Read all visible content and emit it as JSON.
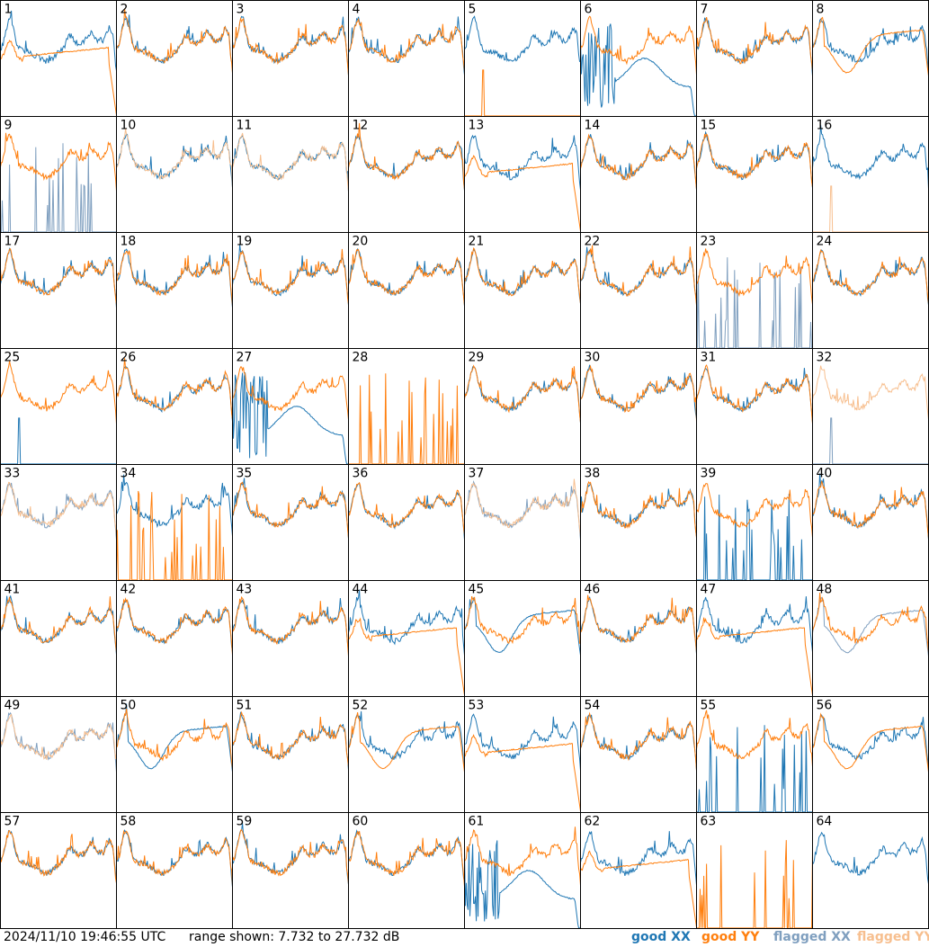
{
  "footer": {
    "timestamp": "2024/11/10 19:46:55 UTC",
    "range_text": "range shown: 7.732 to 27.732 dB"
  },
  "legend": {
    "good_xx": "good XX",
    "good_yy": "good YY",
    "flagged_xx": "flagged XX",
    "flagged_yy": "flagged YY"
  },
  "colors": {
    "good_xx": "#1f77b4",
    "good_yy": "#ff7f0e",
    "flagged_xx": "#7f9fbf",
    "flagged_yy": "#f7bf8f"
  },
  "chart_data": {
    "type": "line",
    "panel_grid": {
      "rows": 8,
      "cols": 8
    },
    "ylim_db": [
      7.732,
      27.732
    ],
    "panels": [
      {
        "label": "1",
        "xx": "good",
        "yy": "good",
        "xx_mode": "normal",
        "yy_mode": "dropoff"
      },
      {
        "label": "2",
        "xx": "good",
        "yy": "good",
        "xx_mode": "normal",
        "yy_mode": "normal"
      },
      {
        "label": "3",
        "xx": "good",
        "yy": "good",
        "xx_mode": "normal",
        "yy_mode": "normal"
      },
      {
        "label": "4",
        "xx": "good",
        "yy": "good",
        "xx_mode": "normal",
        "yy_mode": "normal"
      },
      {
        "label": "5",
        "xx": "good",
        "yy": "good",
        "xx_mode": "normal",
        "yy_mode": "dead"
      },
      {
        "label": "6",
        "xx": "good",
        "yy": "good",
        "xx_mode": "broken",
        "yy_mode": "normal"
      },
      {
        "label": "7",
        "xx": "good",
        "yy": "good",
        "xx_mode": "normal",
        "yy_mode": "normal"
      },
      {
        "label": "8",
        "xx": "good",
        "yy": "good",
        "xx_mode": "normal",
        "yy_mode": "smooth"
      },
      {
        "label": "9",
        "xx": "flagged",
        "yy": "good",
        "xx_mode": "spiky",
        "yy_mode": "normal"
      },
      {
        "label": "10",
        "xx": "good",
        "yy": "flagged",
        "xx_mode": "normal",
        "yy_mode": "normal"
      },
      {
        "label": "11",
        "xx": "good",
        "yy": "flagged",
        "xx_mode": "normal",
        "yy_mode": "normal"
      },
      {
        "label": "12",
        "xx": "good",
        "yy": "good",
        "xx_mode": "normal",
        "yy_mode": "normal"
      },
      {
        "label": "13",
        "xx": "good",
        "yy": "good",
        "xx_mode": "normal",
        "yy_mode": "dropoff"
      },
      {
        "label": "14",
        "xx": "good",
        "yy": "good",
        "xx_mode": "normal",
        "yy_mode": "normal"
      },
      {
        "label": "15",
        "xx": "good",
        "yy": "good",
        "xx_mode": "normal",
        "yy_mode": "normal"
      },
      {
        "label": "16",
        "xx": "good",
        "yy": "flagged",
        "xx_mode": "normal",
        "yy_mode": "dead"
      },
      {
        "label": "17",
        "xx": "good",
        "yy": "good",
        "xx_mode": "normal",
        "yy_mode": "normal"
      },
      {
        "label": "18",
        "xx": "good",
        "yy": "good",
        "xx_mode": "normal",
        "yy_mode": "normal"
      },
      {
        "label": "19",
        "xx": "good",
        "yy": "good",
        "xx_mode": "normal",
        "yy_mode": "normal"
      },
      {
        "label": "20",
        "xx": "good",
        "yy": "good",
        "xx_mode": "normal",
        "yy_mode": "normal"
      },
      {
        "label": "21",
        "xx": "good",
        "yy": "good",
        "xx_mode": "normal",
        "yy_mode": "normal"
      },
      {
        "label": "22",
        "xx": "good",
        "yy": "good",
        "xx_mode": "normal",
        "yy_mode": "normal"
      },
      {
        "label": "23",
        "xx": "flagged",
        "yy": "good",
        "xx_mode": "spiky",
        "yy_mode": "normal"
      },
      {
        "label": "24",
        "xx": "good",
        "yy": "good",
        "xx_mode": "normal",
        "yy_mode": "normal"
      },
      {
        "label": "25",
        "xx": "good",
        "yy": "good",
        "xx_mode": "dead",
        "yy_mode": "normal"
      },
      {
        "label": "26",
        "xx": "good",
        "yy": "good",
        "xx_mode": "normal",
        "yy_mode": "normal"
      },
      {
        "label": "27",
        "xx": "good",
        "yy": "good",
        "xx_mode": "broken",
        "yy_mode": "normal"
      },
      {
        "label": "28",
        "xx": "good",
        "yy": "good",
        "xx_mode": "none",
        "yy_mode": "spiky"
      },
      {
        "label": "29",
        "xx": "good",
        "yy": "good",
        "xx_mode": "normal",
        "yy_mode": "normal"
      },
      {
        "label": "30",
        "xx": "good",
        "yy": "good",
        "xx_mode": "normal",
        "yy_mode": "normal"
      },
      {
        "label": "31",
        "xx": "good",
        "yy": "good",
        "xx_mode": "normal",
        "yy_mode": "normal"
      },
      {
        "label": "32",
        "xx": "flagged",
        "yy": "flagged",
        "xx_mode": "dead",
        "yy_mode": "normal"
      },
      {
        "label": "33",
        "xx": "flagged",
        "yy": "flagged",
        "xx_mode": "normal",
        "yy_mode": "normal"
      },
      {
        "label": "34",
        "xx": "good",
        "yy": "good",
        "xx_mode": "normal",
        "yy_mode": "spiky"
      },
      {
        "label": "35",
        "xx": "good",
        "yy": "good",
        "xx_mode": "normal",
        "yy_mode": "normal"
      },
      {
        "label": "36",
        "xx": "good",
        "yy": "good",
        "xx_mode": "normal",
        "yy_mode": "normal"
      },
      {
        "label": "37",
        "xx": "flagged",
        "yy": "flagged",
        "xx_mode": "normal",
        "yy_mode": "normal"
      },
      {
        "label": "38",
        "xx": "good",
        "yy": "good",
        "xx_mode": "normal",
        "yy_mode": "normal"
      },
      {
        "label": "39",
        "xx": "good",
        "yy": "good",
        "xx_mode": "spiky",
        "yy_mode": "normal"
      },
      {
        "label": "40",
        "xx": "good",
        "yy": "good",
        "xx_mode": "normal",
        "yy_mode": "normal"
      },
      {
        "label": "41",
        "xx": "good",
        "yy": "good",
        "xx_mode": "normal",
        "yy_mode": "normal"
      },
      {
        "label": "42",
        "xx": "good",
        "yy": "good",
        "xx_mode": "normal",
        "yy_mode": "normal"
      },
      {
        "label": "43",
        "xx": "good",
        "yy": "good",
        "xx_mode": "normal",
        "yy_mode": "normal"
      },
      {
        "label": "44",
        "xx": "good",
        "yy": "good",
        "xx_mode": "normal",
        "yy_mode": "dropoff"
      },
      {
        "label": "45",
        "xx": "good",
        "yy": "good",
        "xx_mode": "smooth",
        "yy_mode": "normal"
      },
      {
        "label": "46",
        "xx": "good",
        "yy": "good",
        "xx_mode": "normal",
        "yy_mode": "normal"
      },
      {
        "label": "47",
        "xx": "good",
        "yy": "good",
        "xx_mode": "normal",
        "yy_mode": "dropoff"
      },
      {
        "label": "48",
        "xx": "flagged",
        "yy": "good",
        "xx_mode": "smooth",
        "yy_mode": "normal"
      },
      {
        "label": "49",
        "xx": "flagged",
        "yy": "flagged",
        "xx_mode": "normal",
        "yy_mode": "normal"
      },
      {
        "label": "50",
        "xx": "good",
        "yy": "good",
        "xx_mode": "smooth",
        "yy_mode": "normal"
      },
      {
        "label": "51",
        "xx": "good",
        "yy": "good",
        "xx_mode": "normal",
        "yy_mode": "normal"
      },
      {
        "label": "52",
        "xx": "good",
        "yy": "good",
        "xx_mode": "normal",
        "yy_mode": "smooth"
      },
      {
        "label": "53",
        "xx": "good",
        "yy": "good",
        "xx_mode": "normal",
        "yy_mode": "dropoff"
      },
      {
        "label": "54",
        "xx": "good",
        "yy": "good",
        "xx_mode": "normal",
        "yy_mode": "normal"
      },
      {
        "label": "55",
        "xx": "good",
        "yy": "good",
        "xx_mode": "spiky",
        "yy_mode": "normal"
      },
      {
        "label": "56",
        "xx": "good",
        "yy": "good",
        "xx_mode": "normal",
        "yy_mode": "smooth"
      },
      {
        "label": "57",
        "xx": "good",
        "yy": "good",
        "xx_mode": "normal",
        "yy_mode": "normal"
      },
      {
        "label": "58",
        "xx": "good",
        "yy": "good",
        "xx_mode": "normal",
        "yy_mode": "normal"
      },
      {
        "label": "59",
        "xx": "good",
        "yy": "good",
        "xx_mode": "normal",
        "yy_mode": "normal"
      },
      {
        "label": "60",
        "xx": "good",
        "yy": "good",
        "xx_mode": "normal",
        "yy_mode": "normal"
      },
      {
        "label": "61",
        "xx": "good",
        "yy": "good",
        "xx_mode": "broken",
        "yy_mode": "normal"
      },
      {
        "label": "62",
        "xx": "good",
        "yy": "good",
        "xx_mode": "normal",
        "yy_mode": "dropoff"
      },
      {
        "label": "63",
        "xx": "good",
        "yy": "good",
        "xx_mode": "none",
        "yy_mode": "spiky"
      },
      {
        "label": "64",
        "xx": "good",
        "yy": "good",
        "xx_mode": "normal",
        "yy_mode": "none"
      }
    ]
  }
}
